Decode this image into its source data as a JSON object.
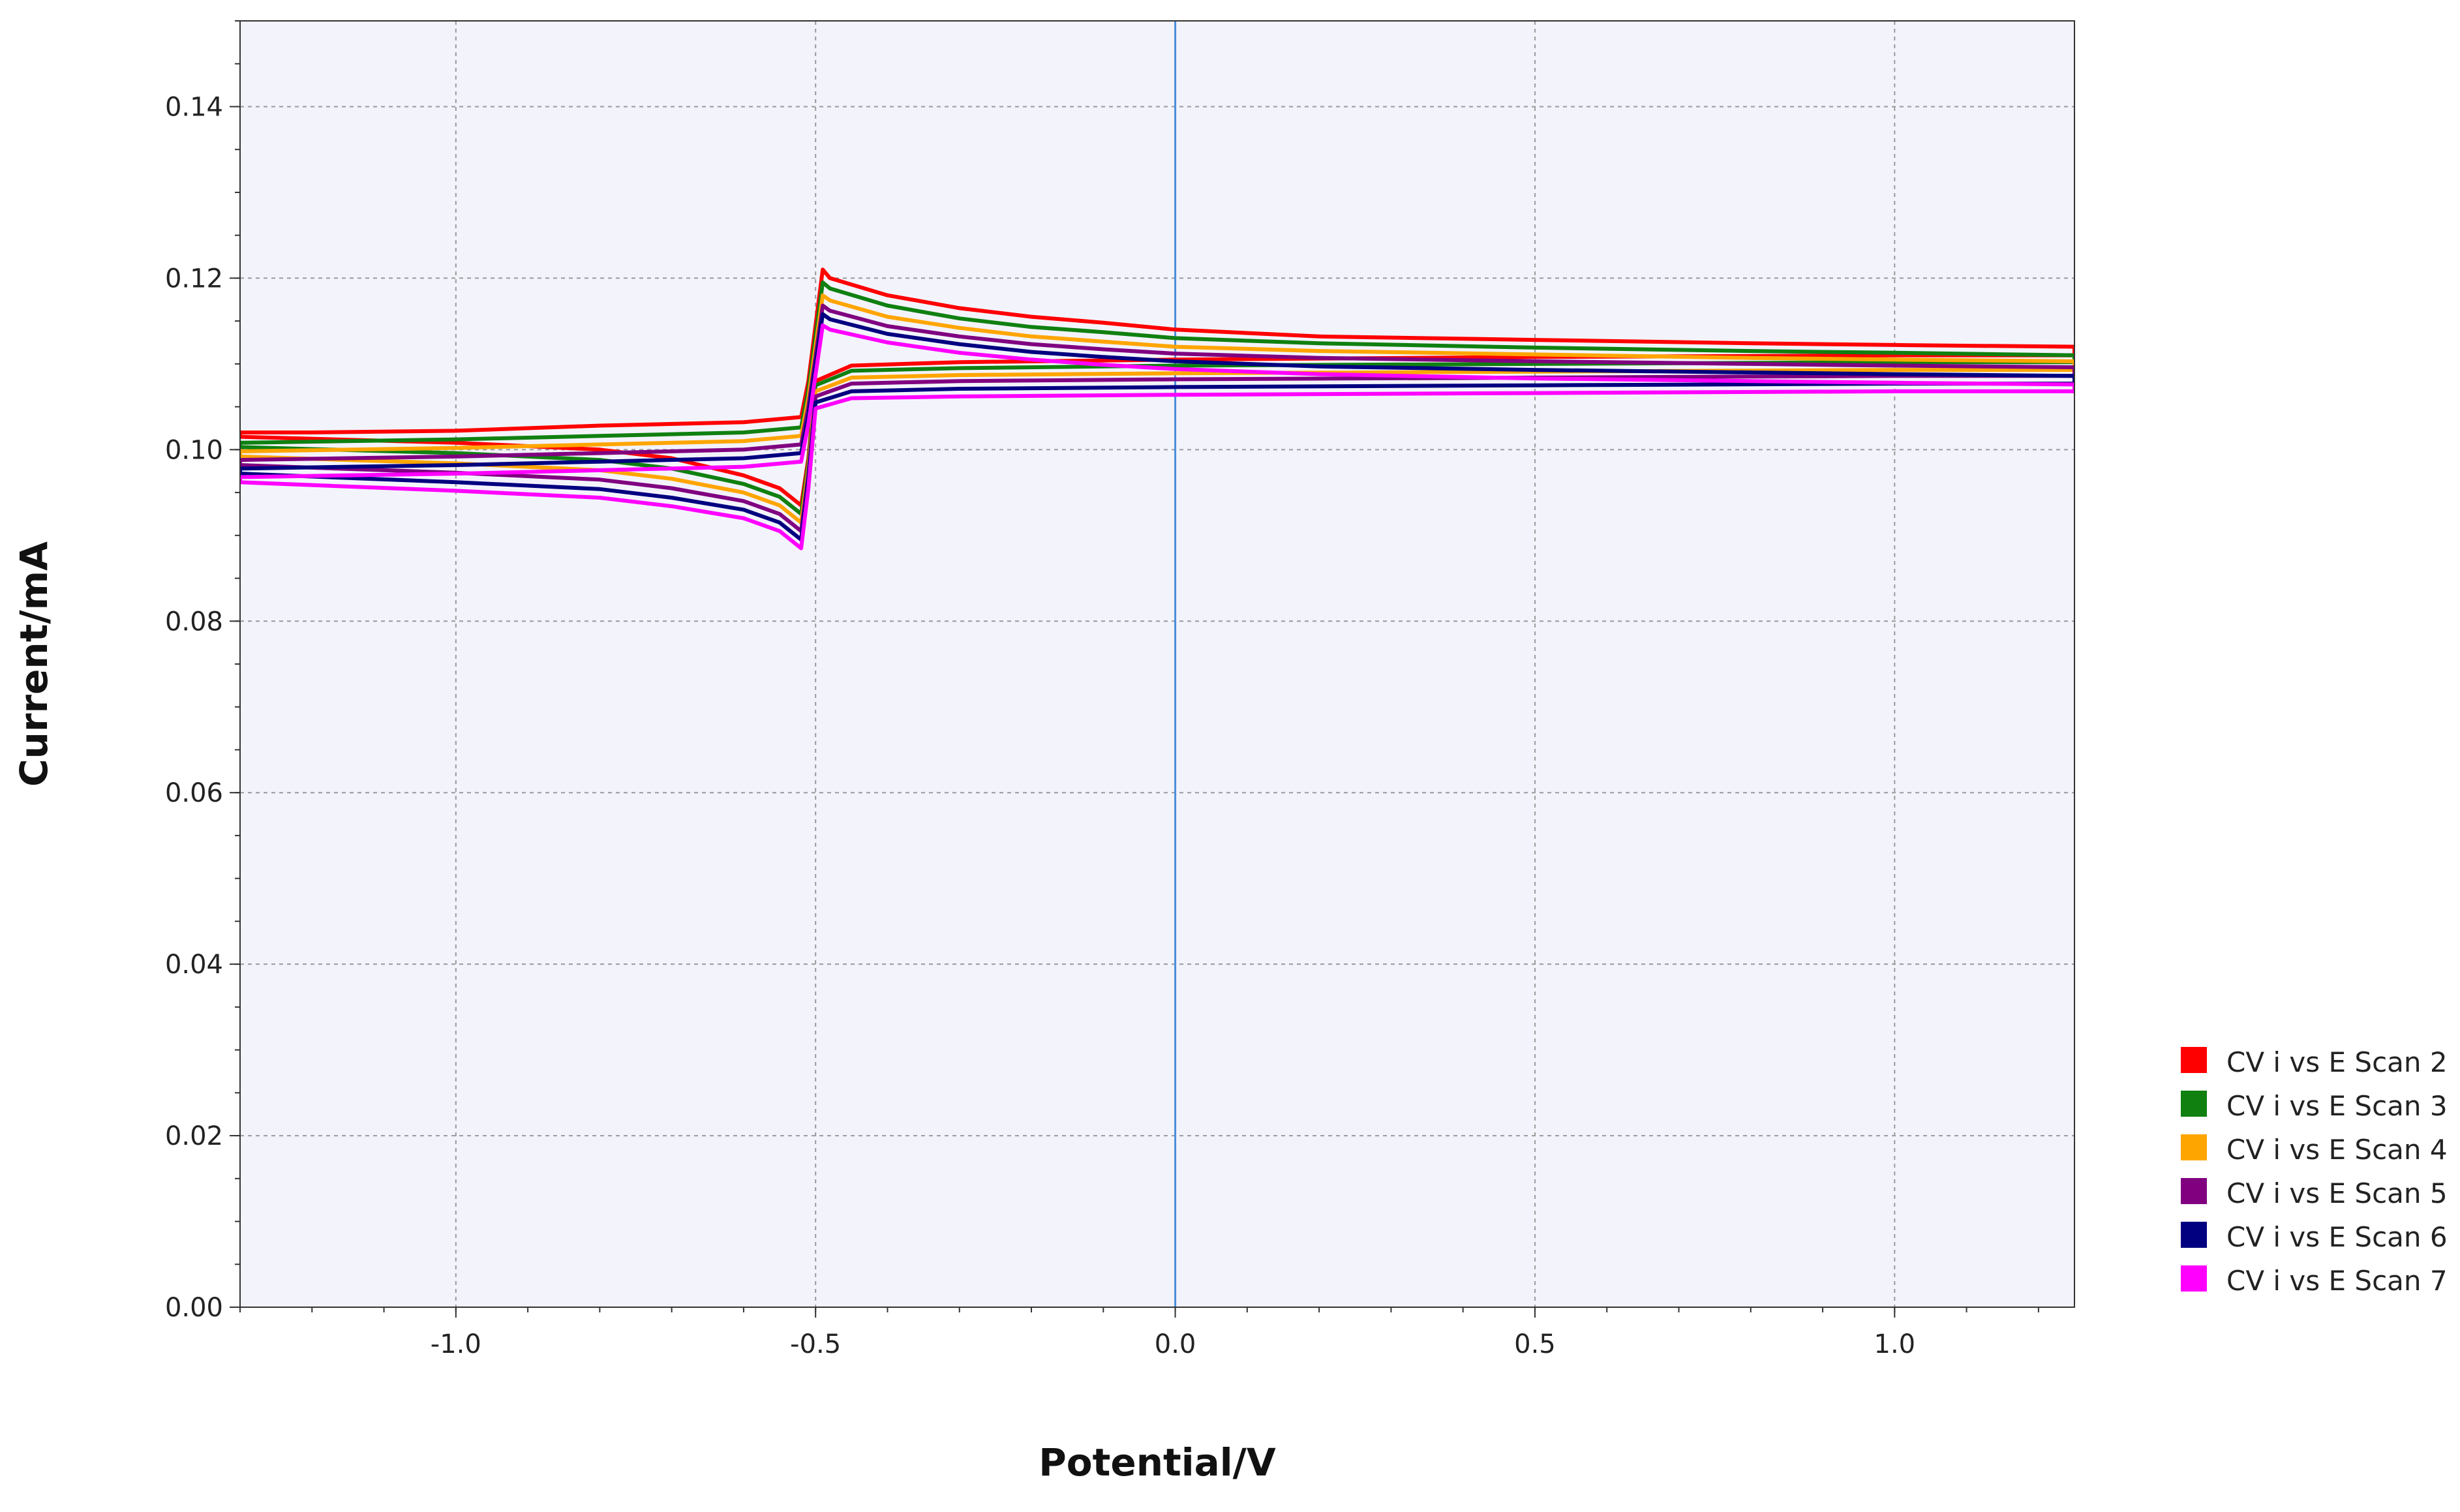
{
  "chart_data": {
    "type": "line",
    "title": "",
    "xlabel": "Potential/V",
    "ylabel": "Current/mA",
    "xlim": [
      -1.3,
      1.25
    ],
    "ylim": [
      0.0,
      0.15
    ],
    "x_ticks": [
      {
        "value": -1.0,
        "label": "-1.0"
      },
      {
        "value": -0.5,
        "label": "-0.5"
      },
      {
        "value": 0.0,
        "label": "0.0"
      },
      {
        "value": 0.5,
        "label": "0.5"
      },
      {
        "value": 1.0,
        "label": "1.0"
      }
    ],
    "y_ticks": [
      {
        "value": 0.0,
        "label": "0.00"
      },
      {
        "value": 0.02,
        "label": "0.02"
      },
      {
        "value": 0.04,
        "label": "0.04"
      },
      {
        "value": 0.06,
        "label": "0.06"
      },
      {
        "value": 0.08,
        "label": "0.08"
      },
      {
        "value": 0.1,
        "label": "0.10"
      },
      {
        "value": 0.12,
        "label": "0.12"
      },
      {
        "value": 0.14,
        "label": "0.14"
      }
    ],
    "grid": true,
    "zero_line_color": "#4a8fdc",
    "plot_background": "#f3f3fc",
    "legend_position": "right-bottom",
    "series": [
      {
        "name": "CV i vs E Scan 2",
        "color": "#ff0000",
        "anodic": [
          [
            -1.3,
            0.102
          ],
          [
            -1.2,
            0.102
          ],
          [
            -1.0,
            0.1022
          ],
          [
            -0.8,
            0.1028
          ],
          [
            -0.6,
            0.1032
          ],
          [
            -0.52,
            0.1038
          ],
          [
            -0.51,
            0.108
          ],
          [
            -0.49,
            0.121
          ],
          [
            -0.48,
            0.12
          ],
          [
            -0.4,
            0.118
          ],
          [
            -0.3,
            0.1165
          ],
          [
            -0.2,
            0.1155
          ],
          [
            -0.1,
            0.1148
          ],
          [
            0.0,
            0.114
          ],
          [
            0.2,
            0.1132
          ],
          [
            0.5,
            0.1128
          ],
          [
            0.8,
            0.1124
          ],
          [
            1.0,
            0.1122
          ],
          [
            1.25,
            0.112
          ]
        ],
        "cathodic": [
          [
            1.25,
            0.111
          ],
          [
            1.0,
            0.111
          ],
          [
            0.5,
            0.1108
          ],
          [
            0.0,
            0.1105
          ],
          [
            -0.3,
            0.1102
          ],
          [
            -0.45,
            0.1098
          ],
          [
            -0.5,
            0.108
          ],
          [
            -0.51,
            0.099
          ],
          [
            -0.52,
            0.0935
          ],
          [
            -0.55,
            0.0955
          ],
          [
            -0.6,
            0.097
          ],
          [
            -0.7,
            0.099
          ],
          [
            -0.8,
            0.1
          ],
          [
            -1.0,
            0.1008
          ],
          [
            -1.3,
            0.1015
          ]
        ]
      },
      {
        "name": "CV i vs E Scan 3",
        "color": "#108010",
        "anodic": [
          [
            -1.3,
            0.1008
          ],
          [
            -1.0,
            0.1012
          ],
          [
            -0.8,
            0.1016
          ],
          [
            -0.6,
            0.102
          ],
          [
            -0.52,
            0.1026
          ],
          [
            -0.51,
            0.107
          ],
          [
            -0.49,
            0.1195
          ],
          [
            -0.48,
            0.1188
          ],
          [
            -0.4,
            0.1168
          ],
          [
            -0.3,
            0.1153
          ],
          [
            -0.2,
            0.1143
          ],
          [
            -0.1,
            0.1137
          ],
          [
            0.0,
            0.113
          ],
          [
            0.2,
            0.1124
          ],
          [
            0.5,
            0.1119
          ],
          [
            0.8,
            0.1115
          ],
          [
            1.0,
            0.1113
          ],
          [
            1.25,
            0.111
          ]
        ],
        "cathodic": [
          [
            1.25,
            0.1102
          ],
          [
            1.0,
            0.1102
          ],
          [
            0.5,
            0.11
          ],
          [
            0.0,
            0.1098
          ],
          [
            -0.3,
            0.1095
          ],
          [
            -0.45,
            0.1092
          ],
          [
            -0.5,
            0.1075
          ],
          [
            -0.51,
            0.0985
          ],
          [
            -0.52,
            0.0925
          ],
          [
            -0.55,
            0.0945
          ],
          [
            -0.6,
            0.096
          ],
          [
            -0.7,
            0.0978
          ],
          [
            -0.8,
            0.0988
          ],
          [
            -1.0,
            0.0996
          ],
          [
            -1.3,
            0.1003
          ]
        ]
      },
      {
        "name": "CV i vs E Scan 4",
        "color": "#ffa500",
        "anodic": [
          [
            -1.3,
            0.0998
          ],
          [
            -1.0,
            0.1002
          ],
          [
            -0.8,
            0.1006
          ],
          [
            -0.6,
            0.101
          ],
          [
            -0.52,
            0.1016
          ],
          [
            -0.51,
            0.106
          ],
          [
            -0.49,
            0.118
          ],
          [
            -0.48,
            0.1174
          ],
          [
            -0.4,
            0.1155
          ],
          [
            -0.3,
            0.1142
          ],
          [
            -0.2,
            0.1132
          ],
          [
            -0.1,
            0.1126
          ],
          [
            0.0,
            0.112
          ],
          [
            0.2,
            0.1115
          ],
          [
            0.5,
            0.1111
          ],
          [
            0.8,
            0.1107
          ],
          [
            1.0,
            0.1105
          ],
          [
            1.25,
            0.1103
          ]
        ],
        "cathodic": [
          [
            1.25,
            0.1093
          ],
          [
            1.0,
            0.1093
          ],
          [
            0.5,
            0.1091
          ],
          [
            0.0,
            0.1089
          ],
          [
            -0.3,
            0.1087
          ],
          [
            -0.45,
            0.1084
          ],
          [
            -0.5,
            0.1068
          ],
          [
            -0.51,
            0.0978
          ],
          [
            -0.52,
            0.0915
          ],
          [
            -0.55,
            0.0935
          ],
          [
            -0.6,
            0.095
          ],
          [
            -0.7,
            0.0966
          ],
          [
            -0.8,
            0.0976
          ],
          [
            -1.0,
            0.0984
          ],
          [
            -1.3,
            0.0992
          ]
        ]
      },
      {
        "name": "CV i vs E Scan 5",
        "color": "#800080",
        "anodic": [
          [
            -1.3,
            0.0988
          ],
          [
            -1.0,
            0.0992
          ],
          [
            -0.8,
            0.0996
          ],
          [
            -0.6,
            0.1
          ],
          [
            -0.52,
            0.1006
          ],
          [
            -0.51,
            0.105
          ],
          [
            -0.49,
            0.1168
          ],
          [
            -0.48,
            0.1162
          ],
          [
            -0.4,
            0.1144
          ],
          [
            -0.3,
            0.1132
          ],
          [
            -0.2,
            0.1123
          ],
          [
            -0.1,
            0.1117
          ],
          [
            0.0,
            0.1112
          ],
          [
            0.2,
            0.1107
          ],
          [
            0.5,
            0.1103
          ],
          [
            0.8,
            0.11
          ],
          [
            1.0,
            0.1098
          ],
          [
            1.25,
            0.1096
          ]
        ],
        "cathodic": [
          [
            1.25,
            0.1086
          ],
          [
            1.0,
            0.1086
          ],
          [
            0.5,
            0.1084
          ],
          [
            0.0,
            0.1082
          ],
          [
            -0.3,
            0.108
          ],
          [
            -0.45,
            0.1077
          ],
          [
            -0.5,
            0.1062
          ],
          [
            -0.51,
            0.0972
          ],
          [
            -0.52,
            0.0905
          ],
          [
            -0.55,
            0.0925
          ],
          [
            -0.6,
            0.094
          ],
          [
            -0.7,
            0.0955
          ],
          [
            -0.8,
            0.0965
          ],
          [
            -1.0,
            0.0973
          ],
          [
            -1.3,
            0.0982
          ]
        ]
      },
      {
        "name": "CV i vs E Scan 6",
        "color": "#000080",
        "anodic": [
          [
            -1.3,
            0.0978
          ],
          [
            -1.0,
            0.0982
          ],
          [
            -0.8,
            0.0986
          ],
          [
            -0.6,
            0.099
          ],
          [
            -0.52,
            0.0996
          ],
          [
            -0.51,
            0.104
          ],
          [
            -0.49,
            0.1158
          ],
          [
            -0.48,
            0.1152
          ],
          [
            -0.4,
            0.1135
          ],
          [
            -0.3,
            0.1123
          ],
          [
            -0.2,
            0.1114
          ],
          [
            -0.1,
            0.1108
          ],
          [
            0.0,
            0.1103
          ],
          [
            0.2,
            0.1097
          ],
          [
            0.5,
            0.1093
          ],
          [
            0.8,
            0.109
          ],
          [
            1.0,
            0.1088
          ],
          [
            1.25,
            0.1086
          ]
        ],
        "cathodic": [
          [
            1.25,
            0.1077
          ],
          [
            1.0,
            0.1077
          ],
          [
            0.5,
            0.1075
          ],
          [
            0.0,
            0.1073
          ],
          [
            -0.3,
            0.1071
          ],
          [
            -0.45,
            0.1068
          ],
          [
            -0.5,
            0.1055
          ],
          [
            -0.51,
            0.0965
          ],
          [
            -0.52,
            0.0895
          ],
          [
            -0.55,
            0.0915
          ],
          [
            -0.6,
            0.093
          ],
          [
            -0.7,
            0.0944
          ],
          [
            -0.8,
            0.0954
          ],
          [
            -1.0,
            0.0962
          ],
          [
            -1.3,
            0.0972
          ]
        ]
      },
      {
        "name": "CV i vs E Scan 7",
        "color": "#ff00ff",
        "anodic": [
          [
            -1.3,
            0.0968
          ],
          [
            -1.0,
            0.0972
          ],
          [
            -0.8,
            0.0976
          ],
          [
            -0.6,
            0.098
          ],
          [
            -0.52,
            0.0986
          ],
          [
            -0.51,
            0.103
          ],
          [
            -0.49,
            0.1145
          ],
          [
            -0.48,
            0.114
          ],
          [
            -0.4,
            0.1125
          ],
          [
            -0.3,
            0.1113
          ],
          [
            -0.2,
            0.1105
          ],
          [
            -0.1,
            0.1099
          ],
          [
            0.0,
            0.1094
          ],
          [
            0.2,
            0.1088
          ],
          [
            0.5,
            0.1083
          ],
          [
            0.8,
            0.108
          ],
          [
            1.0,
            0.1078
          ],
          [
            1.25,
            0.1076
          ]
        ],
        "cathodic": [
          [
            1.25,
            0.1068
          ],
          [
            1.0,
            0.1068
          ],
          [
            0.5,
            0.1066
          ],
          [
            0.0,
            0.1064
          ],
          [
            -0.3,
            0.1062
          ],
          [
            -0.45,
            0.106
          ],
          [
            -0.5,
            0.1048
          ],
          [
            -0.51,
            0.0955
          ],
          [
            -0.52,
            0.0885
          ],
          [
            -0.55,
            0.0905
          ],
          [
            -0.6,
            0.092
          ],
          [
            -0.7,
            0.0934
          ],
          [
            -0.8,
            0.0944
          ],
          [
            -1.0,
            0.0952
          ],
          [
            -1.3,
            0.0962
          ]
        ]
      }
    ]
  }
}
